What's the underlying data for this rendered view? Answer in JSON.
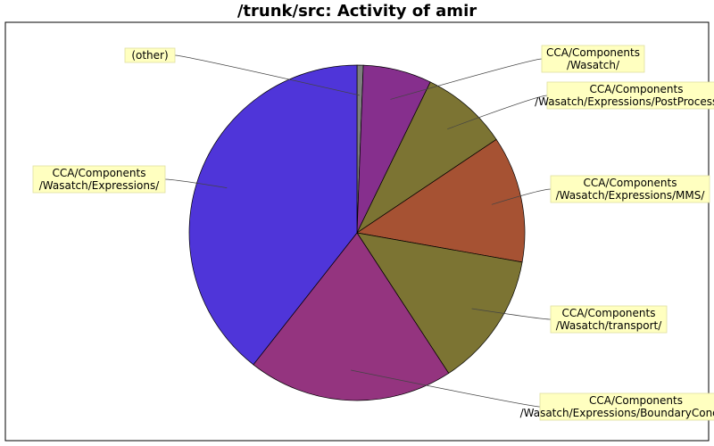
{
  "chart_data": {
    "type": "pie",
    "title": "/trunk/src: Activity of amir",
    "slices": [
      {
        "label_lines": [
          "(other)"
        ],
        "value": 0.6,
        "color": "#7f7f7f"
      },
      {
        "label_lines": [
          "CCA/Components",
          "/Wasatch/"
        ],
        "value": 6.6,
        "color": "#862f8d"
      },
      {
        "label_lines": [
          "CCA/Components",
          "/Wasatch/Expressions/PostProcessing/"
        ],
        "value": 8.4,
        "color": "#7c7433"
      },
      {
        "label_lines": [
          "CCA/Components",
          "/Wasatch/Expressions/MMS/"
        ],
        "value": 12.2,
        "color": "#a65233"
      },
      {
        "label_lines": [
          "CCA/Components",
          "/Wasatch/transport/"
        ],
        "value": 13.0,
        "color": "#7c7433"
      },
      {
        "label_lines": [
          "CCA/Components",
          "/Wasatch/Expressions/BoundaryConditions/"
        ],
        "value": 19.8,
        "color": "#94347f"
      },
      {
        "label_lines": [
          "CCA/Components",
          "/Wasatch/Expressions/"
        ],
        "value": 39.4,
        "color": "#4f35d9"
      }
    ],
    "legend": "none"
  }
}
